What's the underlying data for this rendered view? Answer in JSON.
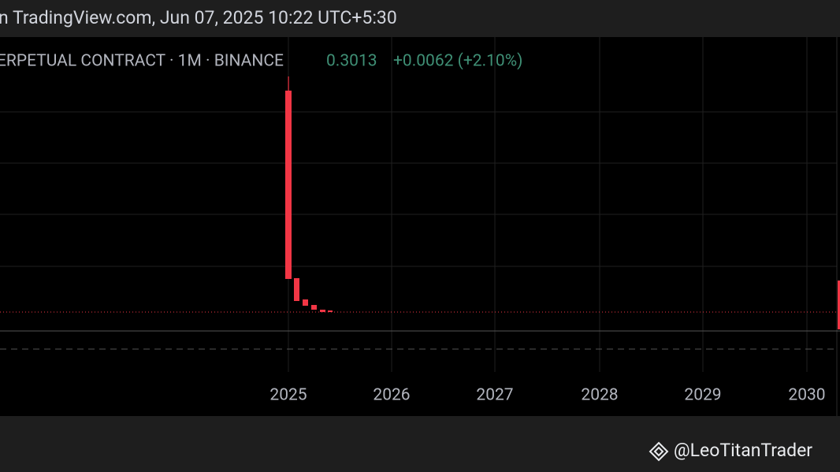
{
  "header": {
    "text": "n TradingView.com, Jun 07, 2025 10:22 UTC+5:30"
  },
  "legend": {
    "symbol": "ERPETUAL CONTRACT · 1M · BINANCE",
    "price": "0.3013",
    "change": "+0.0062 (+2.10%)"
  },
  "x_axis": {
    "labels": [
      "2025",
      "2026",
      "2027",
      "2028",
      "2029",
      "2030"
    ]
  },
  "watermark": {
    "text": "@LeoTitanTrader"
  }
}
